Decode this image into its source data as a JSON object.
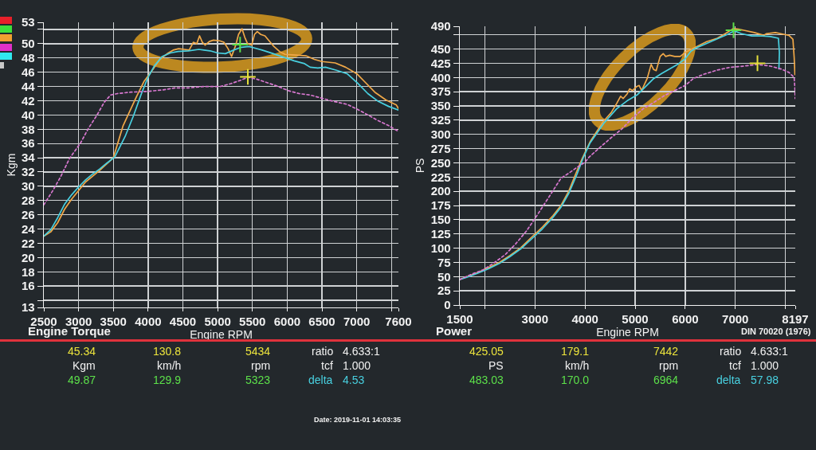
{
  "chart_data": [
    {
      "type": "line",
      "title": "Engine Torque",
      "xlabel": "Engine RPM",
      "ylabel": "Kgm",
      "xlim": [
        2500,
        7600
      ],
      "xticks": [
        2500,
        3000,
        3500,
        4000,
        4500,
        5000,
        5500,
        6000,
        6500,
        7000,
        {
          "value": 7500,
          "label": null
        },
        7600
      ],
      "ylim": [
        13,
        53
      ],
      "yticks": [
        13,
        {
          "value": 14,
          "label": null
        },
        16,
        18,
        20,
        22,
        24,
        26,
        28,
        30,
        32,
        34,
        36,
        38,
        40,
        42,
        44,
        46,
        48,
        50,
        {
          "value": 52,
          "label": null
        },
        53
      ],
      "grid": true,
      "series": [
        {
          "color": "#f0a848",
          "x": [
            2500,
            2600,
            2700,
            2800,
            2900,
            3000,
            3100,
            3200,
            3300,
            3400,
            3500,
            3640,
            3830,
            3940,
            4040,
            4170,
            4290,
            4360,
            4440,
            4520,
            4590,
            4650,
            4700,
            4740,
            4780,
            4820,
            4880,
            4940,
            5030,
            5090,
            5150,
            5200,
            5260,
            5300,
            5350,
            5390,
            5430,
            5490,
            5530,
            5570,
            5620,
            5680,
            5740,
            5810,
            5890,
            5970,
            6120,
            6270,
            6390,
            6500,
            6690,
            6840,
            7000,
            7110,
            7260,
            7420,
            7570,
            7600
          ],
          "values": [
            23.0,
            23.6,
            24.9,
            26.8,
            28.2,
            29.4,
            30.6,
            31.4,
            32.2,
            33.1,
            34.0,
            38.5,
            42.5,
            44.7,
            46.0,
            47.8,
            48.7,
            49.1,
            49.3,
            49.2,
            49.1,
            50.2,
            50.0,
            51.1,
            50.2,
            49.8,
            50.3,
            50.5,
            50.4,
            50.2,
            49.3,
            48.2,
            49.8,
            51.3,
            52.1,
            50.9,
            50.0,
            49.8,
            51.3,
            51.7,
            51.3,
            51.1,
            50.4,
            49.6,
            48.9,
            48.5,
            48.4,
            48.3,
            47.8,
            47.5,
            47.3,
            46.7,
            45.8,
            44.7,
            43.2,
            42.1,
            41.4,
            40.9
          ]
        },
        {
          "color": "#48d0e0",
          "x": [
            2500,
            2600,
            2700,
            2800,
            2900,
            3000,
            3100,
            3200,
            3300,
            3400,
            3520,
            3670,
            3790,
            3900,
            3990,
            4090,
            4200,
            4320,
            4430,
            4580,
            4730,
            4890,
            5000,
            5110,
            5230,
            5340,
            5450,
            5530,
            5640,
            5800,
            5950,
            6100,
            6250,
            6330,
            6440,
            6550,
            6700,
            6860,
            7010,
            7160,
            7310,
            7460,
            7600
          ],
          "values": [
            23.0,
            23.9,
            25.6,
            27.5,
            28.8,
            29.9,
            30.9,
            31.7,
            32.4,
            33.2,
            34.1,
            37.0,
            39.9,
            42.9,
            45.1,
            46.9,
            48.2,
            48.7,
            48.9,
            49.0,
            49.2,
            49.0,
            48.7,
            48.6,
            49.1,
            49.5,
            49.6,
            49.4,
            49.1,
            48.6,
            48.1,
            47.6,
            47.2,
            46.7,
            46.6,
            46.7,
            46.3,
            45.8,
            44.5,
            43.0,
            41.9,
            41.2,
            40.7
          ]
        },
        {
          "color": "#d878d0",
          "line_style": "dotted",
          "x": [
            2500,
            2630,
            2740,
            2870,
            3030,
            3140,
            3260,
            3370,
            3460,
            3560,
            3750,
            3980,
            4200,
            4390,
            4580,
            4810,
            5040,
            5190,
            5340,
            5434,
            5570,
            5720,
            5870,
            6020,
            6170,
            6330,
            6480,
            6670,
            6860,
            7010,
            7160,
            7310,
            7460,
            7600
          ],
          "values": [
            27.4,
            29.4,
            31.3,
            33.9,
            36.1,
            38.1,
            39.9,
            41.8,
            42.8,
            43.0,
            43.2,
            43.3,
            43.5,
            43.8,
            43.8,
            44.0,
            44.0,
            44.4,
            44.9,
            45.3,
            45.0,
            44.5,
            44.0,
            43.4,
            43.0,
            42.8,
            42.4,
            41.9,
            41.5,
            40.8,
            40.0,
            39.2,
            38.5,
            37.7
          ]
        },
        {
          "type": "scatter",
          "marker": "cross",
          "color": "#e6e03c",
          "x": [
            5434
          ],
          "values": [
            45.34
          ]
        },
        {
          "type": "scatter",
          "marker": "cross",
          "color": "#5ce04a",
          "x": [
            5323
          ],
          "values": [
            49.87
          ]
        }
      ],
      "annotations": [
        "45.34",
        "130.8",
        "5434",
        "ratio",
        "4.633:1",
        "Kgm",
        "km/h",
        "rpm",
        "tcf",
        "1.000",
        "49.87",
        "129.9",
        "5323",
        "delta",
        "4.53",
        "Date: 2019-11-01 14:03:35"
      ]
    },
    {
      "type": "line",
      "title": "Power",
      "xlabel": "Engine RPM",
      "ylabel": "PS",
      "xlim": [
        1500,
        8197
      ],
      "xticks": [
        1500,
        {
          "value": 2000,
          "label": null
        },
        3000,
        4000,
        5000,
        6000,
        7000,
        {
          "value": 8000,
          "label": null
        },
        8197
      ],
      "ylim": [
        0,
        490
      ],
      "yticks": [
        0,
        25,
        50,
        75,
        100,
        125,
        150,
        175,
        200,
        225,
        250,
        275,
        300,
        325,
        350,
        375,
        400,
        425,
        450,
        {
          "value": 475,
          "label": null
        },
        490
      ],
      "grid": true,
      "series": [
        {
          "color": "#f0a848",
          "x": [
            1500,
            1650,
            1860,
            2080,
            2290,
            2500,
            2720,
            2930,
            3150,
            3360,
            3520,
            3680,
            3840,
            3950,
            4100,
            4360,
            4520,
            4630,
            4710,
            4760,
            4840,
            4890,
            4950,
            5030,
            5080,
            5130,
            5240,
            5320,
            5370,
            5420,
            5500,
            5560,
            5610,
            5690,
            5790,
            5900,
            6000,
            6110,
            6270,
            6430,
            6640,
            6800,
            6960,
            7060,
            7170,
            7380,
            7570,
            7620,
            7800,
            7960,
            8070,
            8150,
            8175,
            8190
          ],
          "values": [
            45,
            50,
            57,
            66,
            75,
            87,
            101,
            119,
            137,
            157,
            175,
            201,
            236,
            259,
            287,
            322,
            338,
            354,
            367,
            363,
            371,
            380,
            377,
            384,
            386,
            377,
            398,
            423,
            414,
            412,
            437,
            442,
            437,
            439,
            437,
            437,
            444,
            449,
            456,
            463,
            469,
            477,
            486,
            485,
            483,
            479,
            474,
            477,
            479,
            476,
            474,
            467,
            435,
            405
          ]
        },
        {
          "color": "#48d0e0",
          "x": [
            1500,
            1650,
            1860,
            2080,
            2290,
            2500,
            2720,
            2930,
            3150,
            3360,
            3520,
            3680,
            3840,
            3960,
            4100,
            4370,
            4630,
            4840,
            5050,
            5210,
            5370,
            5530,
            5690,
            5850,
            6000,
            6110,
            6220,
            6430,
            6640,
            6850,
            6980,
            7120,
            7330,
            7540,
            7700,
            7860,
            7880,
            7870
          ],
          "values": [
            45,
            49,
            56,
            64,
            73,
            85,
            99,
            116,
            134,
            154,
            172,
            197,
            230,
            258,
            285,
            319,
            345,
            359,
            370,
            384,
            398,
            407,
            415,
            423,
            433,
            446,
            452,
            460,
            468,
            476,
            482,
            477,
            473,
            473,
            472,
            469,
            444,
            415
          ]
        },
        {
          "color": "#d878d0",
          "line_style": "dotted",
          "x": [
            1500,
            1760,
            1970,
            2180,
            2400,
            2610,
            2830,
            3000,
            3170,
            3360,
            3520,
            3680,
            3840,
            4000,
            4080,
            4310,
            4520,
            4740,
            4950,
            5160,
            5370,
            5580,
            5790,
            6000,
            6160,
            6380,
            6640,
            6900,
            7170,
            7442,
            7700,
            7910,
            8070,
            8175,
            8190,
            8195
          ],
          "values": [
            45,
            55,
            62,
            74,
            88,
            107,
            130,
            152,
            175,
            201,
            223,
            232,
            242,
            251,
            260,
            278,
            294,
            310,
            329,
            345,
            356,
            368,
            377,
            386,
            398,
            406,
            413,
            418,
            420,
            423,
            420,
            415,
            409,
            400,
            379,
            363
          ]
        },
        {
          "type": "scatter",
          "marker": "cross",
          "color": "#e6e03c",
          "x": [
            7442
          ],
          "values": [
            425.05
          ]
        },
        {
          "type": "scatter",
          "marker": "cross",
          "color": "#5ce04a",
          "x": [
            6964
          ],
          "values": [
            483.03
          ]
        }
      ],
      "annotations": [
        "425.05",
        "179.1",
        "7442",
        "ratio",
        "4.633:1",
        "PS",
        "km/h",
        "rpm",
        "tcf",
        "1.000",
        "483.03",
        "170.0",
        "6964",
        "delta",
        "57.98",
        "DIN 70020 (1976)"
      ]
    }
  ]
}
